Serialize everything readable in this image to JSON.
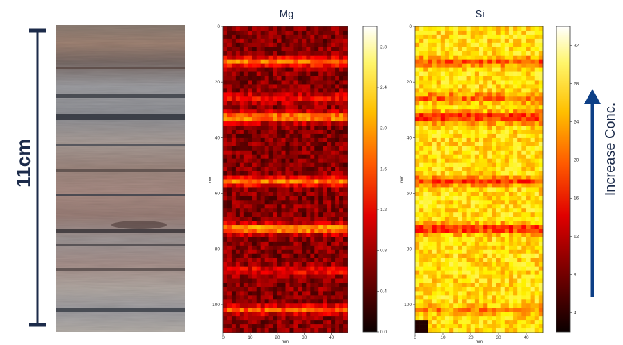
{
  "scale_bar": {
    "label": "11cm",
    "color": "#1c2b4a"
  },
  "core_photo": {
    "description_icon": "rock-core-photo"
  },
  "maps": [
    {
      "id": "mg",
      "title": "Mg",
      "y_ticks": [
        "0",
        "20",
        "40",
        "60",
        "80",
        "100"
      ],
      "x_ticks": [
        "0",
        "10",
        "20",
        "30",
        "40"
      ],
      "axis_label_y": "mm",
      "axis_label_x": "mm",
      "colorbar_ticks": [
        "0.0",
        "0.4",
        "0.8",
        "1.2",
        "1.6",
        "2.0",
        "2.4",
        "2.8"
      ],
      "colorbar_range": [
        0,
        3.0
      ],
      "colormap": "hot"
    },
    {
      "id": "si",
      "title": "Si",
      "y_ticks": [
        "0",
        "20",
        "40",
        "60",
        "80",
        "100"
      ],
      "x_ticks": [
        "0",
        "10",
        "20",
        "30",
        "40"
      ],
      "axis_label_y": "mm",
      "axis_label_x": "mm",
      "colorbar_ticks": [
        "4",
        "8",
        "12",
        "16",
        "20",
        "24",
        "28",
        "32"
      ],
      "colorbar_range": [
        2,
        34
      ],
      "colormap": "hot"
    }
  ],
  "arrow": {
    "label": "Increase Conc.",
    "color": "#0d3f86",
    "icon": "up-arrow-icon"
  }
}
